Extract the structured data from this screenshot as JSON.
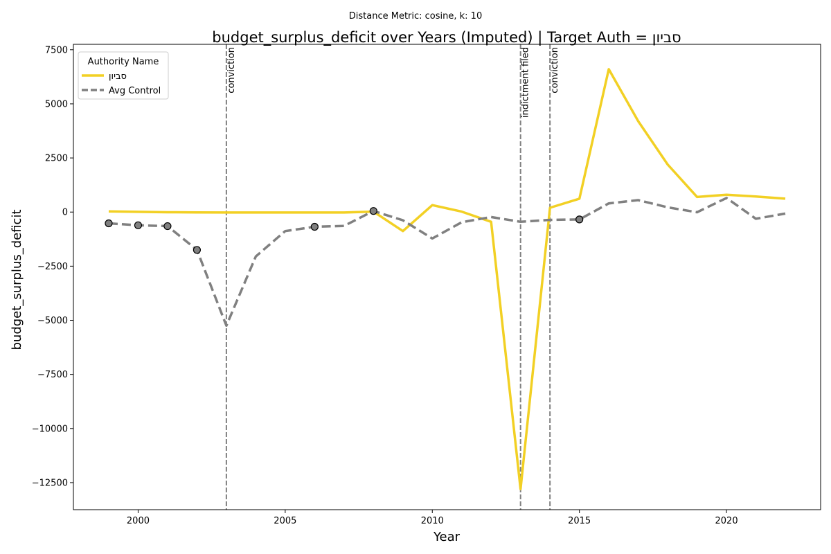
{
  "suptitle": "Distance Metric: cosine, k: 10",
  "chart_data": {
    "type": "line",
    "title": "budget_surplus_deficit over Years (Imputed) | Target Auth = סביון",
    "xlabel": "Year",
    "ylabel": "budget_surplus_deficit",
    "xlim": [
      1997.8,
      2023.2
    ],
    "ylim": [
      -13750,
      7750
    ],
    "x_ticks": [
      2000,
      2005,
      2010,
      2015,
      2020
    ],
    "y_ticks": [
      -12500,
      -10000,
      -7500,
      -5000,
      -2500,
      0,
      2500,
      5000,
      7500
    ],
    "grid": false,
    "legend": {
      "title": "Authority Name",
      "placement": "top-left"
    },
    "x": [
      1999,
      2000,
      2001,
      2002,
      2003,
      2004,
      2005,
      2006,
      2007,
      2008,
      2009,
      2010,
      2011,
      2012,
      2013,
      2014,
      2015,
      2016,
      2017,
      2018,
      2019,
      2020,
      2021,
      2022
    ],
    "series": [
      {
        "name": "סביון",
        "color": "#f2d024",
        "style": "solid",
        "values": [
          30,
          10,
          -10,
          -15,
          -20,
          -20,
          -20,
          -20,
          -20,
          20,
          -880,
          320,
          20,
          -450,
          -12800,
          200,
          620,
          6600,
          4200,
          2200,
          700,
          800,
          720,
          620
        ]
      },
      {
        "name": "Avg Control",
        "color": "#808080",
        "style": "dashed",
        "values": [
          -520,
          -610,
          -650,
          -1750,
          -5250,
          -2050,
          -880,
          -680,
          -640,
          50,
          -380,
          -1220,
          -470,
          -230,
          -450,
          -360,
          -340,
          400,
          550,
          220,
          -10,
          650,
          -310,
          -70
        ]
      }
    ],
    "markers": {
      "series": "Avg Control",
      "x": [
        1999,
        2000,
        2001,
        2002,
        2006,
        2008,
        2015
      ]
    },
    "events": [
      {
        "x": 2003,
        "label": "conviction"
      },
      {
        "x": 2013,
        "label": "indictment filed"
      },
      {
        "x": 2014,
        "label": "conviction"
      }
    ]
  }
}
